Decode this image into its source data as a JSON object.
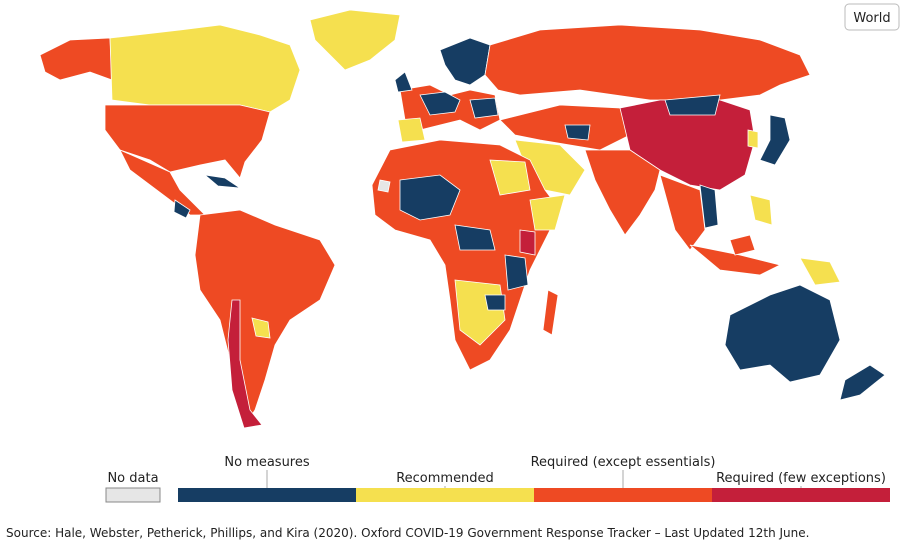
{
  "button": "World",
  "legend": {
    "no_data": {
      "label": "No data",
      "color": "#e6e6e6"
    },
    "categories": [
      {
        "label": "No measures",
        "color": "#163d63"
      },
      {
        "label": "Recommended",
        "color": "#f5e04f"
      },
      {
        "label": "Required (except essentials)",
        "color": "#ee4a23"
      },
      {
        "label": "Required (few exceptions)",
        "color": "#c41f3a"
      }
    ]
  },
  "source": "Source: Hale, Webster, Petherick, Phillips, and Kira (2020). Oxford COVID-19 Government Response Tracker – Last Updated 12th June."
}
